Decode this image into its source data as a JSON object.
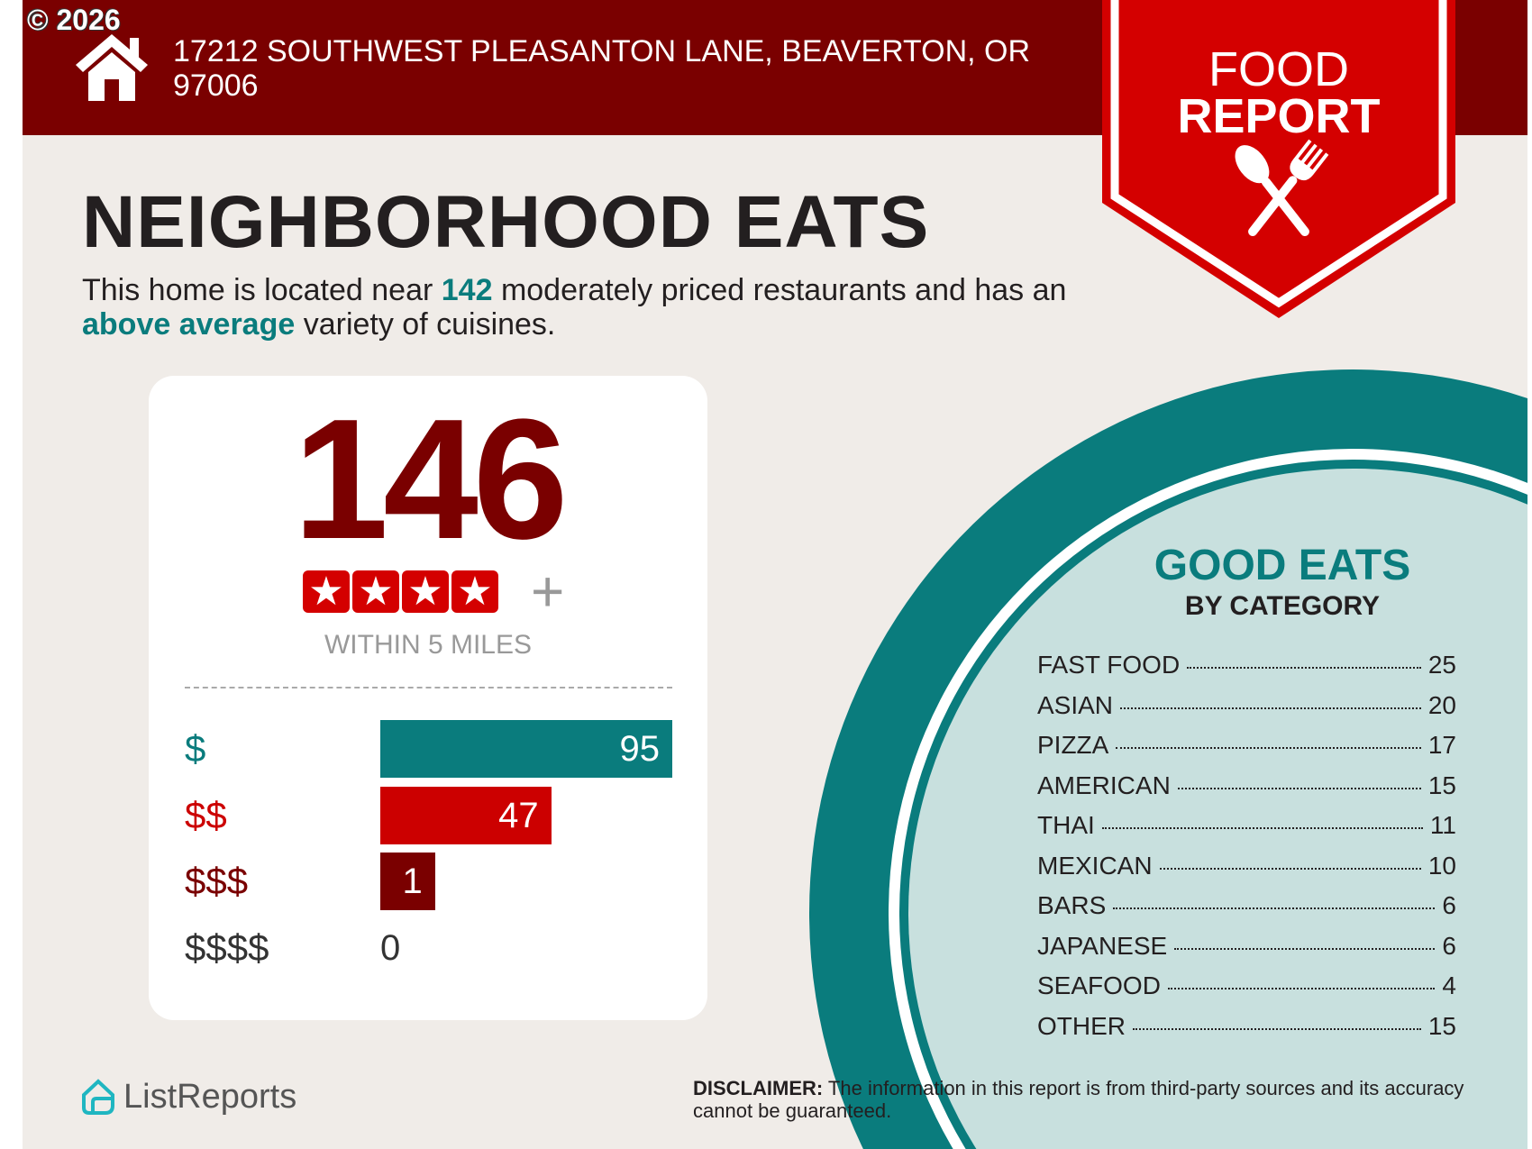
{
  "copyright": "© 2026",
  "header": {
    "address": "17212 SOUTHWEST PLEASANTON LANE, BEAVERTON, OR 97006",
    "ribbon_line1": "FOOD",
    "ribbon_line2": "REPORT"
  },
  "title": "NEIGHBORHOOD EATS",
  "subtitle": {
    "p1": "This home is located near ",
    "count": "142",
    "p2": " moderately priced restaurants and has an ",
    "variety": "above average",
    "p3": " variety of cuisines."
  },
  "card": {
    "total": "146",
    "stars": 4,
    "plus": "+",
    "within": "WITHIN 5 MILES",
    "price_levels": [
      {
        "label": "$",
        "value": 95,
        "color": "#0a7c7d"
      },
      {
        "label": "$$",
        "value": 47,
        "color": "#cc0000"
      },
      {
        "label": "$$$",
        "value": 1,
        "color": "#7a0000"
      },
      {
        "label": "$$$$",
        "value": 0,
        "color": "#333333"
      }
    ]
  },
  "categories": {
    "title": "GOOD EATS",
    "subtitle": "BY CATEGORY",
    "items": [
      {
        "name": "FAST FOOD",
        "count": "25"
      },
      {
        "name": "ASIAN",
        "count": "20"
      },
      {
        "name": "PIZZA",
        "count": "17"
      },
      {
        "name": "AMERICAN",
        "count": "15"
      },
      {
        "name": "THAI",
        "count": "11"
      },
      {
        "name": "MEXICAN",
        "count": "10"
      },
      {
        "name": "BARS",
        "count": "6"
      },
      {
        "name": "JAPANESE",
        "count": "6"
      },
      {
        "name": "SEAFOOD",
        "count": "4"
      },
      {
        "name": "OTHER",
        "count": "15"
      }
    ]
  },
  "footer": {
    "logo": "ListReports",
    "disclaimer_label": "DISCLAIMER:",
    "disclaimer": " The information in this report is from third-party sources and its accuracy cannot be guaranteed."
  },
  "colors": {
    "header": "#7a0000",
    "ribbon": "#d40000",
    "teal": "#0a7c7d",
    "light_teal": "#c8e0de",
    "background": "#f0ece8"
  }
}
